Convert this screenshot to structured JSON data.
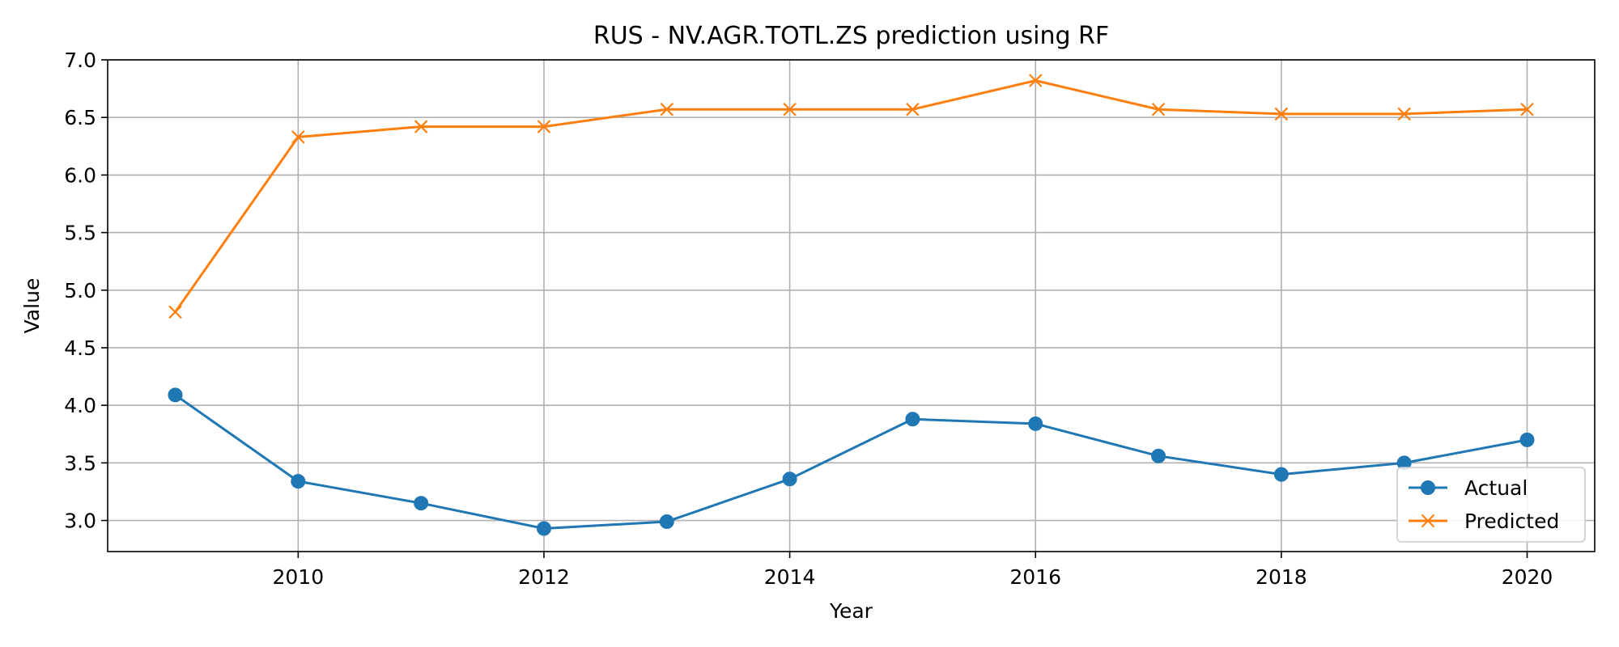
{
  "chart_data": {
    "type": "line",
    "title": "RUS - NV.AGR.TOTL.ZS prediction using RF",
    "xlabel": "Year",
    "ylabel": "Value",
    "x": [
      2009,
      2010,
      2011,
      2012,
      2013,
      2014,
      2015,
      2016,
      2017,
      2018,
      2019,
      2020
    ],
    "xlim": [
      2008.45,
      2020.55
    ],
    "ylim": [
      2.73,
      7.0
    ],
    "xticks": [
      2010,
      2012,
      2014,
      2016,
      2018,
      2020
    ],
    "yticks": [
      3.0,
      3.5,
      4.0,
      4.5,
      5.0,
      5.5,
      6.0,
      6.5,
      7.0
    ],
    "grid": true,
    "legend_position": "lower-right",
    "series": [
      {
        "name": "Actual",
        "color": "#1f77b4",
        "marker": "circle",
        "values": [
          4.09,
          3.34,
          3.15,
          2.93,
          2.99,
          3.36,
          3.88,
          3.84,
          3.56,
          3.4,
          3.5,
          3.7
        ]
      },
      {
        "name": "Predicted",
        "color": "#ff7f0e",
        "marker": "x",
        "values": [
          4.81,
          6.33,
          6.42,
          6.42,
          6.57,
          6.57,
          6.57,
          6.82,
          6.57,
          6.53,
          6.53,
          6.57
        ]
      }
    ]
  }
}
